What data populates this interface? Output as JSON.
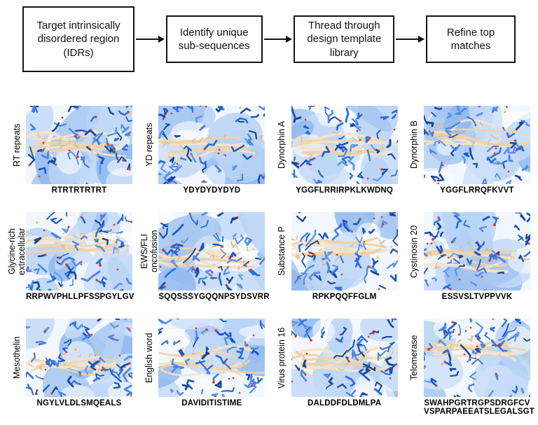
{
  "flowchart": {
    "steps": [
      "Target intrinsically disordered region (IDRs)",
      "Identify unique sub-sequences",
      "Thread through design template library",
      "Refine top matches"
    ]
  },
  "panels": [
    {
      "label": "RT repeats",
      "sequence": "RTRTRTRTRT"
    },
    {
      "label": "YD repeats",
      "sequence": "YDYDYDYDYD"
    },
    {
      "label": "Dynorphin A",
      "sequence": "YGGFLRRIRPKLKWDNQ"
    },
    {
      "label": "Dynorphin B",
      "sequence": "YGGFLRRQFKVVT"
    },
    {
      "label": "Glycine-rich extracellular",
      "sequence": "RRPWVPHLLPFSSPGYLGV"
    },
    {
      "label": "EWS/FLI oncofusion",
      "sequence": "SQQSSSYGQQNPSYDSVRR"
    },
    {
      "label": "Substance P",
      "sequence": "RPKPQQFFGLM"
    },
    {
      "label": "Cystinosin 20",
      "sequence": "ESSVSLTVPPVVK"
    },
    {
      "label": "Mesothelin",
      "sequence": "NGYLVLDLSMQEALS"
    },
    {
      "label": "English word",
      "sequence": "DAVIDITISTIME"
    },
    {
      "label": "Virus protein 16",
      "sequence": "DALDDFDLDMLPA"
    },
    {
      "label": "Telomerase",
      "sequence": "SWAHPGRTRGPSDRGFCV\nVSPARPAEEATSLEGALSGT"
    }
  ],
  "art_palette": {
    "target_cartoon_light_blue": "#b9d3f6",
    "target_sticks_blue": "#2563d4",
    "binder_ribbon_tan": "#efd6ad",
    "binder_sticks_tan": "#e2bd8a",
    "oxygen_red": "#d6402c",
    "sulfur_yellow": "#e3c235"
  }
}
